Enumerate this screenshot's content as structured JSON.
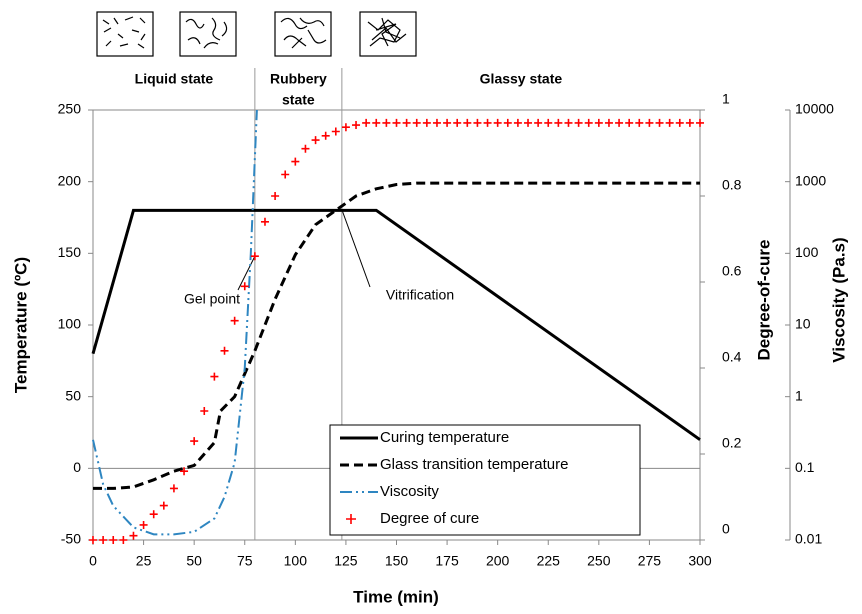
{
  "chart_data": {
    "type": "line",
    "x_label": "Time (min)",
    "y_label": "Temperature (ºC)",
    "y2_label": "Degree-of-cure",
    "y3_label": "Viscosity (Pa.s)",
    "xlim": [
      0,
      300
    ],
    "xticks": [
      0,
      25,
      50,
      75,
      100,
      125,
      150,
      175,
      200,
      225,
      250,
      275,
      300
    ],
    "ylim": [
      -50,
      250
    ],
    "yticks": [
      -50,
      0,
      50,
      100,
      150,
      200,
      250
    ],
    "y2lim": [
      0,
      1
    ],
    "y2ticks": [
      0,
      0.2,
      0.4,
      0.6,
      0.8,
      1
    ],
    "y3lim": [
      0.01,
      10000
    ],
    "y3ticks": [
      0.01,
      0.1,
      1,
      10,
      100,
      1000,
      10000
    ],
    "y3_log": true,
    "region_boundaries": [
      80,
      123
    ],
    "region_labels": [
      [
        "Liquid state"
      ],
      [
        "Rubbery",
        "state"
      ],
      [
        "Glassy state"
      ]
    ],
    "annotations": [
      "Gel point",
      "Vitrification"
    ],
    "series": [
      {
        "name": "Curing temperature",
        "color": "#000000",
        "style": "solid",
        "axis": "y",
        "x": [
          0,
          20,
          140,
          300
        ],
        "values": [
          80,
          180,
          180,
          20
        ]
      },
      {
        "name": "Glass transition temperature",
        "color": "#000000",
        "style": "dashed",
        "axis": "y",
        "x": [
          0,
          10,
          20,
          30,
          40,
          50,
          60,
          63,
          70,
          80,
          90,
          100,
          110,
          120,
          130,
          140,
          150,
          160,
          170,
          300
        ],
        "values": [
          -14,
          -14,
          -13,
          -8,
          -2,
          2,
          18,
          40,
          50,
          82,
          118,
          149,
          170,
          180,
          190,
          195,
          198,
          199,
          199,
          199
        ]
      },
      {
        "name": "Viscosity",
        "color": "#2e86c1",
        "style": "dashdot",
        "axis": "y3",
        "x": [
          0,
          5,
          10,
          20,
          30,
          40,
          50,
          60,
          65,
          70,
          75,
          78,
          81
        ],
        "values": [
          0.25,
          0.06,
          0.03,
          0.015,
          0.012,
          0.012,
          0.013,
          0.02,
          0.04,
          0.12,
          2.5,
          100,
          10000
        ]
      },
      {
        "name": "Degree of cure",
        "color": "#ff0000",
        "style": "plus",
        "axis": "y2",
        "x": [
          0,
          5,
          10,
          15,
          20,
          25,
          30,
          35,
          40,
          45,
          50,
          55,
          60,
          65,
          70,
          75,
          80,
          85,
          90,
          95,
          100,
          105,
          110,
          115,
          120,
          125,
          130,
          135,
          140,
          145,
          150,
          155,
          160,
          165,
          170,
          175,
          180,
          185,
          190,
          195,
          200,
          205,
          210,
          215,
          220,
          225,
          230,
          235,
          240,
          245,
          250,
          255,
          260,
          265,
          270,
          275,
          280,
          285,
          290,
          295,
          300
        ],
        "values": [
          0,
          0,
          0,
          0,
          0.01,
          0.035,
          0.06,
          0.08,
          0.12,
          0.16,
          0.23,
          0.3,
          0.38,
          0.44,
          0.51,
          0.59,
          0.66,
          0.74,
          0.8,
          0.85,
          0.88,
          0.91,
          0.93,
          0.94,
          0.95,
          0.96,
          0.965,
          0.97,
          0.97,
          0.97,
          0.97,
          0.97,
          0.97,
          0.97,
          0.97,
          0.97,
          0.97,
          0.97,
          0.97,
          0.97,
          0.97,
          0.97,
          0.97,
          0.97,
          0.97,
          0.97,
          0.97,
          0.97,
          0.97,
          0.97,
          0.97,
          0.97,
          0.97,
          0.97,
          0.97,
          0.97,
          0.97,
          0.97,
          0.97,
          0.97,
          0.97
        ]
      }
    ]
  }
}
